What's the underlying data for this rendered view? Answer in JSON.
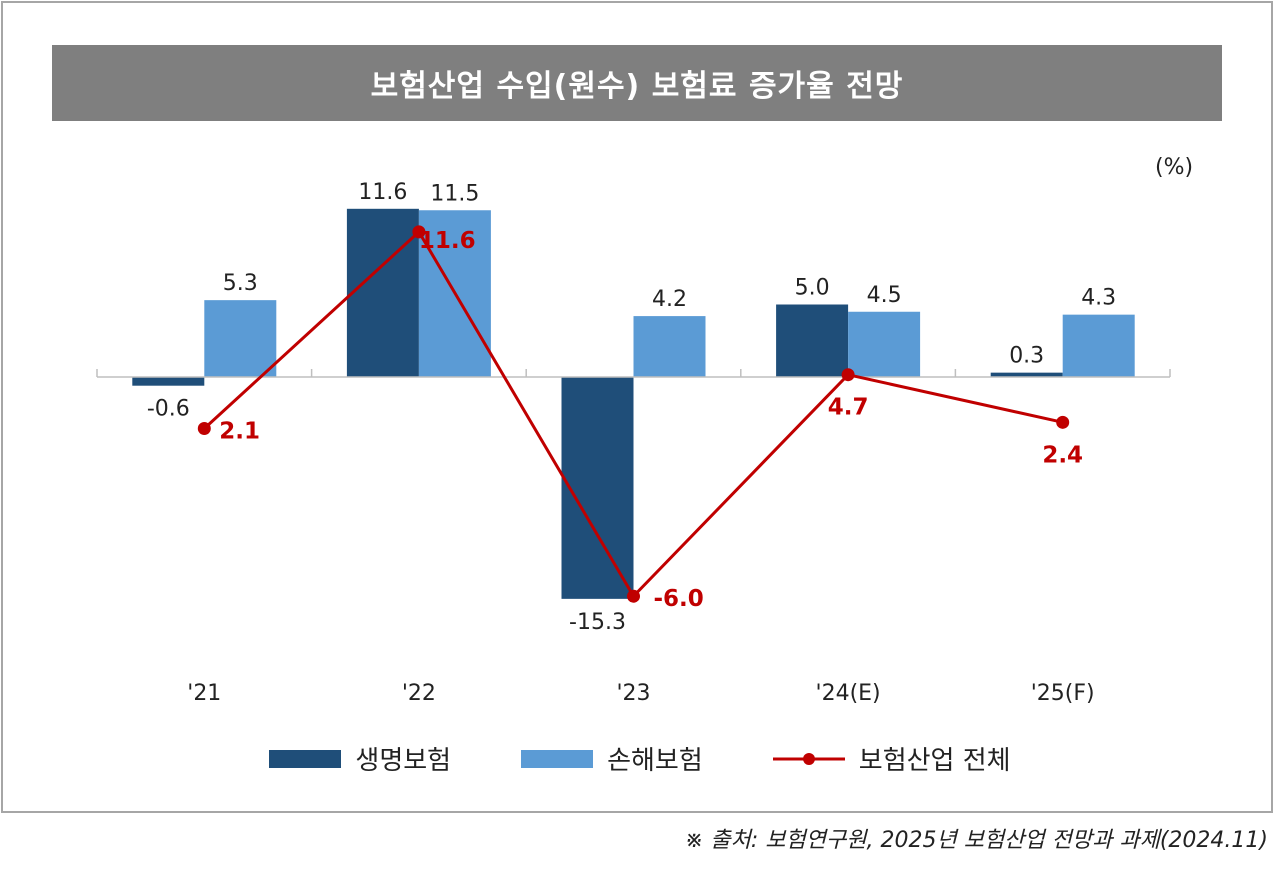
{
  "chart_data": {
    "type": "bar",
    "title": "보험산업 수입(원수) 보험료 증가율 전망",
    "unit": "(%)",
    "categories": [
      "'21",
      "'22",
      "'23",
      "'24(E)",
      "'25(F)"
    ],
    "series": [
      {
        "name": "생명보험",
        "type": "bar",
        "color": "#1f4e79",
        "values": [
          -0.6,
          11.6,
          -15.3,
          5.0,
          0.3
        ]
      },
      {
        "name": "손해보험",
        "type": "bar",
        "color": "#5b9bd5",
        "values": [
          5.3,
          11.5,
          4.2,
          4.5,
          4.3
        ]
      },
      {
        "name": "보험산업 전체",
        "type": "line",
        "color": "#c00000",
        "values": [
          2.1,
          11.6,
          -6.0,
          4.7,
          2.4
        ]
      }
    ],
    "legend": "bottom",
    "grid": false,
    "source": "※ 출처: 보험연구원, 2025년 보험산업 전망과 과제(2024.11)"
  }
}
